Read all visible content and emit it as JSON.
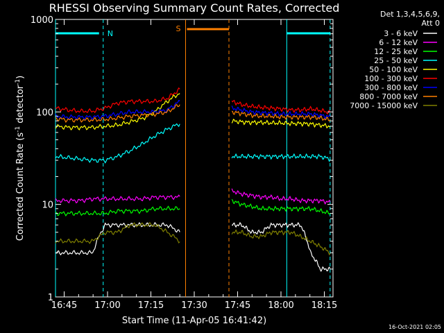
{
  "chart_data": {
    "type": "line",
    "title": "RHESSI Observing Summary Count Rates, Corrected",
    "xlabel": "Start Time (11-Apr-05 16:41:42)",
    "ylabel": "Corrected Count Rate (s^-1 detector^-1)",
    "ylabel_parts": {
      "a": "Corrected Count Rate (s",
      "b": "-1",
      "c": " detector",
      "d": "-1",
      "e": ")"
    },
    "y_scale": "log",
    "ylim": [
      1,
      1000
    ],
    "xlim_minutes": [
      16.7,
      18.3
    ],
    "x_ticks": [
      "16:45",
      "17:00",
      "17:15",
      "17:30",
      "17:45",
      "18:00",
      "18:15"
    ],
    "y_ticks": [
      "1",
      "10",
      "100",
      "1000"
    ],
    "legend_header": [
      "Det 1,3,4,5,6,9,",
      "Att 0"
    ],
    "grid": false,
    "legend_position": "right",
    "series": [
      {
        "name": "3 - 6 keV",
        "color": "#ffffff",
        "pre": [
          3,
          3,
          3,
          3,
          6,
          6,
          6,
          6,
          6,
          6,
          5
        ],
        "post": [
          6,
          6,
          5,
          5,
          6,
          6,
          6,
          6,
          3,
          2,
          2
        ]
      },
      {
        "name": "6 - 12 keV",
        "color": "#ff00ff",
        "pre": [
          11,
          11,
          11,
          11.5,
          11.5,
          11.5,
          11.5,
          11.5,
          12,
          12,
          12
        ],
        "post": [
          14,
          13,
          12.5,
          12,
          12,
          11.5,
          11.5,
          11,
          11,
          11,
          10.5
        ]
      },
      {
        "name": "12 - 25 keV",
        "color": "#00ff00",
        "pre": [
          8,
          8,
          8,
          8,
          8,
          8.5,
          8.5,
          8.5,
          9,
          9,
          9
        ],
        "post": [
          11,
          10,
          9.5,
          9,
          9,
          9,
          9,
          9,
          9,
          8.5,
          8
        ]
      },
      {
        "name": "25 - 50 keV",
        "color": "#00ffff",
        "pre": [
          33,
          32,
          31,
          30,
          30,
          33,
          38,
          45,
          55,
          65,
          75
        ],
        "post": [
          33,
          33,
          33,
          33,
          33,
          33,
          33,
          33,
          33,
          33,
          31
        ]
      },
      {
        "name": "50 - 100 keV",
        "color": "#ffff00",
        "pre": [
          70,
          68,
          68,
          68,
          70,
          72,
          78,
          85,
          100,
          130,
          160
        ],
        "post": [
          80,
          78,
          77,
          77,
          76,
          76,
          75,
          75,
          74,
          72,
          70
        ]
      },
      {
        "name": "100 - 300 keV",
        "color": "#ff0000",
        "pre": [
          110,
          105,
          102,
          102,
          110,
          125,
          130,
          130,
          130,
          140,
          175
        ],
        "post": [
          130,
          120,
          115,
          112,
          110,
          108,
          105,
          105,
          108,
          104,
          98
        ]
      },
      {
        "name": "300 - 800 keV",
        "color": "#0000ff",
        "pre": [
          90,
          88,
          88,
          88,
          90,
          95,
          100,
          100,
          100,
          105,
          130
        ],
        "post": [
          110,
          105,
          100,
          98,
          97,
          95,
          95,
          95,
          95,
          92,
          88
        ]
      },
      {
        "name": "800 - 7000 keV",
        "color": "#ff8000",
        "pre": [
          85,
          82,
          82,
          82,
          83,
          86,
          90,
          92,
          95,
          100,
          120
        ],
        "post": [
          100,
          96,
          92,
          90,
          90,
          88,
          88,
          88,
          88,
          86,
          82
        ]
      },
      {
        "name": "7000 - 15000 keV",
        "color": "#808000",
        "pre": [
          4,
          4,
          4,
          4,
          5,
          5,
          6,
          6,
          6,
          5,
          4
        ],
        "post": [
          5,
          5,
          4.5,
          4.5,
          5,
          5,
          5,
          4.5,
          4,
          3.5,
          3
        ]
      }
    ],
    "annotations": {
      "N": "N",
      "S": "S"
    }
  },
  "footer_text": "16-Oct-2021 02:05"
}
